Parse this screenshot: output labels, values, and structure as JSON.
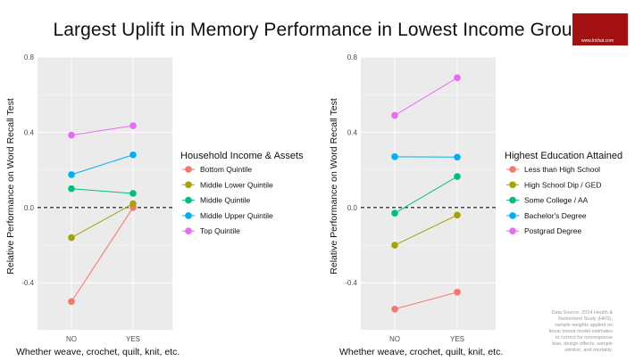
{
  "title": "Largest Uplift in Memory Performance in Lowest Income Group",
  "brand_text": "www.lrichat.com",
  "source_note": "Data Source: 2014 Health & Retirement Study (HRS), sample weights applied on linear mixed model estimates to correct for nonresponse bias, design effects, sample attrition, and mortality.",
  "colors": {
    "panel_bg": "#ebebeb",
    "grid": "#ffffff",
    "reference_line": "#111111",
    "series": [
      "#F8766D",
      "#A3A500",
      "#00BF7D",
      "#00B0F6",
      "#E76BF3"
    ]
  },
  "chart_data": [
    {
      "type": "line",
      "x": [
        "NO",
        "YES"
      ],
      "xlabel": "Whether weave, crochet, quilt, knit, etc.",
      "ylabel": "Relative Performance on Word Recall Test",
      "ylim": [
        -0.65,
        0.8
      ],
      "yticks": [
        0.8,
        0.4,
        0.0,
        -0.4
      ],
      "ytick_labels": [
        "0.8",
        "0.4",
        "0.0",
        "-0.4"
      ],
      "reference_line": 0.0,
      "grid": true,
      "legend_title": "Household Income & Assets",
      "legend_position": "right",
      "series": [
        {
          "name": "Bottom Quintile",
          "values": [
            -0.5,
            0.0
          ]
        },
        {
          "name": "Middle Lower Quintile",
          "values": [
            -0.16,
            0.02
          ]
        },
        {
          "name": "Middle Quintile",
          "values": [
            0.1,
            0.075
          ]
        },
        {
          "name": "Middle Upper Quintile",
          "values": [
            0.175,
            0.28
          ]
        },
        {
          "name": "Top Quintile",
          "values": [
            0.385,
            0.435
          ]
        }
      ]
    },
    {
      "type": "line",
      "x": [
        "NO",
        "YES"
      ],
      "xlabel": "Whether weave, crochet, quilt, knit, etc.",
      "ylabel": "Relative Performance on Word Recall Test",
      "ylim": [
        -0.65,
        0.8
      ],
      "yticks": [
        0.8,
        0.4,
        0.0,
        -0.4
      ],
      "ytick_labels": [
        "0.8",
        "0.4",
        "0.0",
        "-0.4"
      ],
      "reference_line": 0.0,
      "grid": true,
      "legend_title": "Highest Education Attained",
      "legend_position": "right",
      "series": [
        {
          "name": "Less than High School",
          "values": [
            -0.54,
            -0.45
          ]
        },
        {
          "name": "High School Dip / GED",
          "values": [
            -0.2,
            -0.04
          ]
        },
        {
          "name": "Some College / AA",
          "values": [
            -0.03,
            0.165
          ]
        },
        {
          "name": "Bachelor's Degree",
          "values": [
            0.27,
            0.268
          ]
        },
        {
          "name": "Postgrad Degree",
          "values": [
            0.49,
            0.69
          ]
        }
      ]
    }
  ]
}
